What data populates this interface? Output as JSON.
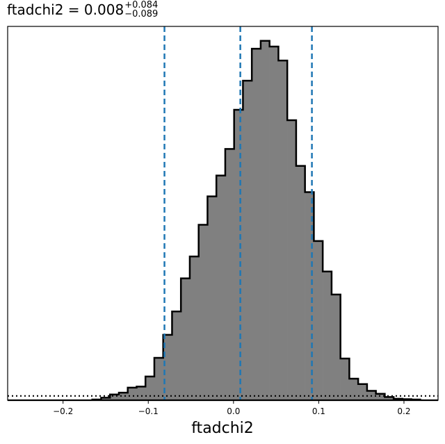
{
  "title": {
    "param": "ftadchi2",
    "equals": "=",
    "median": "0.008",
    "plus": "+0.084",
    "minus": "−0.089"
  },
  "chart_data": {
    "type": "histogram",
    "xlabel": "ftadchi2",
    "ylabel": "",
    "xlim": [
      -0.265,
      0.24
    ],
    "ylim": [
      0,
      1.04
    ],
    "xticks": [
      -0.2,
      -0.1,
      0.0,
      0.1,
      0.2
    ],
    "xtick_labels": [
      "−0.2",
      "−0.1",
      "0.0",
      "0.1",
      "0.2"
    ],
    "grid": false,
    "bin_width": 0.0104,
    "bin_start": -0.1657,
    "bar_fill": "#808080",
    "bar_edge": "#000000",
    "quantile_color": "#1f77b4",
    "counts": [
      0.002,
      0.007,
      0.016,
      0.021,
      0.035,
      0.038,
      0.066,
      0.118,
      0.182,
      0.247,
      0.339,
      0.4,
      0.488,
      0.567,
      0.625,
      0.699,
      0.808,
      0.889,
      0.978,
      1.0,
      0.984,
      0.945,
      0.779,
      0.652,
      0.579,
      0.443,
      0.358,
      0.294,
      0.116,
      0.06,
      0.045,
      0.026,
      0.018,
      0.009,
      0.004,
      0.003,
      0.002
    ],
    "quantiles": [
      -0.081,
      0.008,
      0.092
    ],
    "prior_level": 0.012
  }
}
